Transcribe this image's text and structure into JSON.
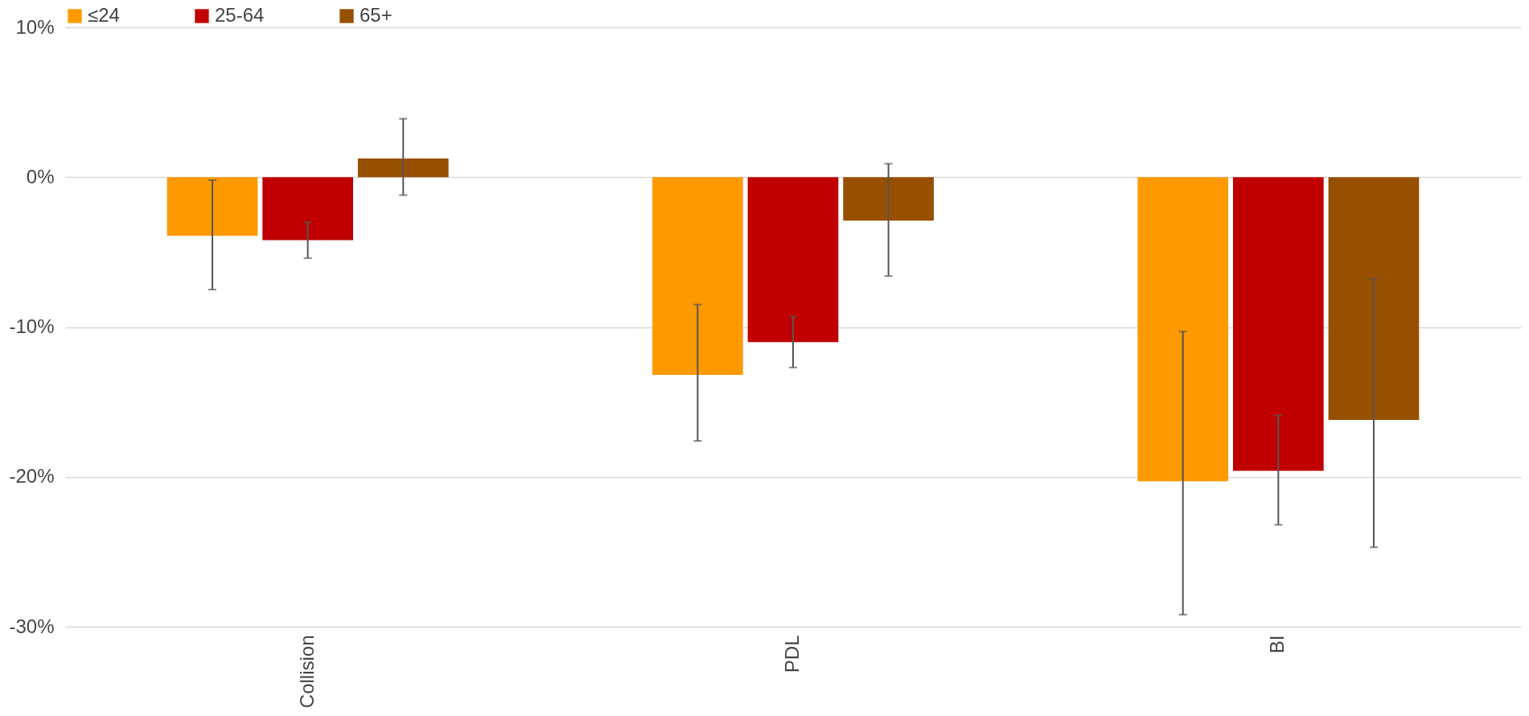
{
  "chart_data": {
    "type": "bar",
    "categories": [
      "Collision",
      "PDL",
      "BI"
    ],
    "series": [
      {
        "name": "≤24",
        "color": "#ff9900",
        "values": [
          -3.9,
          -13.2,
          -20.3
        ],
        "errors": [
          [
            -7.5,
            -0.2
          ],
          [
            -17.6,
            -8.5
          ],
          [
            -29.2,
            -10.3
          ]
        ]
      },
      {
        "name": "25-64",
        "color": "#c00000",
        "values": [
          -4.2,
          -11.0,
          -19.6
        ],
        "errors": [
          [
            -5.4,
            -3.0
          ],
          [
            -12.7,
            -9.3
          ],
          [
            -23.2,
            -15.9
          ]
        ]
      },
      {
        "name": "65+",
        "color": "#974f00",
        "values": [
          1.25,
          -2.9,
          -16.2
        ],
        "errors": [
          [
            -1.2,
            3.9
          ],
          [
            -6.6,
            0.9
          ],
          [
            -24.7,
            -6.8
          ]
        ]
      }
    ],
    "ylim": [
      -30,
      10
    ],
    "yticks": [
      {
        "value": -30,
        "label": "-30%"
      },
      {
        "value": -20,
        "label": "-20%"
      },
      {
        "value": -10,
        "label": "-10%"
      },
      {
        "value": 0,
        "label": "0%"
      },
      {
        "value": 10,
        "label": "10%"
      }
    ],
    "grid": "y",
    "legend": "top"
  }
}
